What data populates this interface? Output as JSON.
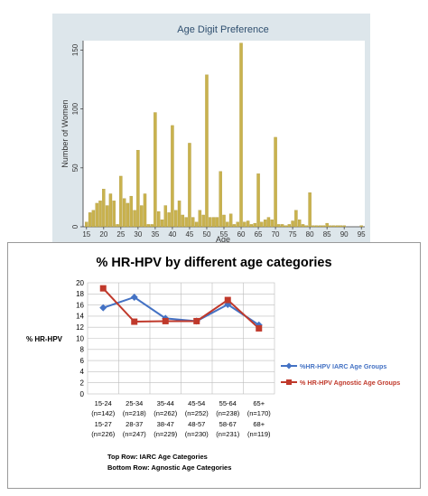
{
  "chart_data": [
    {
      "type": "bar",
      "title": "Age Digit Preference",
      "xlabel": "Age",
      "ylabel": "Number of Women",
      "xlim": [
        14,
        96
      ],
      "ylim": [
        0,
        158
      ],
      "xticks": [
        15,
        20,
        25,
        30,
        35,
        40,
        45,
        50,
        55,
        60,
        65,
        70,
        75,
        80,
        85,
        90,
        95
      ],
      "yticks": [
        0,
        50,
        100,
        150
      ],
      "ages": [
        15,
        16,
        17,
        18,
        19,
        20,
        21,
        22,
        23,
        24,
        25,
        26,
        27,
        28,
        29,
        30,
        31,
        32,
        33,
        34,
        35,
        36,
        37,
        38,
        39,
        40,
        41,
        42,
        43,
        44,
        45,
        46,
        47,
        48,
        49,
        50,
        51,
        52,
        53,
        54,
        55,
        56,
        57,
        58,
        59,
        60,
        61,
        62,
        63,
        64,
        65,
        66,
        67,
        68,
        69,
        70,
        71,
        72,
        73,
        74,
        75,
        76,
        77,
        78,
        79,
        80,
        81,
        82,
        83,
        84,
        85,
        86,
        87,
        88,
        89,
        90,
        91,
        92,
        93,
        94,
        95
      ],
      "values": [
        4,
        12,
        14,
        20,
        22,
        32,
        18,
        28,
        22,
        2,
        43,
        24,
        20,
        26,
        14,
        65,
        18,
        28,
        2,
        2,
        97,
        13,
        6,
        18,
        12,
        86,
        14,
        22,
        10,
        8,
        71,
        8,
        4,
        14,
        10,
        129,
        8,
        8,
        8,
        47,
        10,
        4,
        11,
        2,
        4,
        156,
        4,
        5,
        2,
        3,
        45,
        4,
        6,
        8,
        6,
        76,
        2,
        2,
        1,
        2,
        5,
        14,
        6,
        2,
        1,
        29,
        1,
        1,
        1,
        1,
        3,
        1,
        1,
        1,
        1,
        1,
        0,
        0,
        0,
        0,
        1
      ],
      "colors": {
        "bar": "#c9b24e",
        "bar_stroke": "#a8922f",
        "panel": "#dde6eb",
        "plot": "#ffffff"
      }
    },
    {
      "type": "line",
      "title": "% HR-HPV by different age categories",
      "ylabel": "% HR-HPV",
      "ylim": [
        0,
        20
      ],
      "yticks": [
        0,
        2,
        4,
        6,
        8,
        10,
        12,
        14,
        16,
        18,
        20
      ],
      "categories": [
        "15-24",
        "25-34",
        "35-44",
        "45-54",
        "55-64",
        "65+"
      ],
      "row1_counts": [
        "(n=142)",
        "(n=218)",
        "(n=262)",
        "(n=252)",
        "(n=238)",
        "(n=170)"
      ],
      "row2_labels": [
        "15-27",
        "28-37",
        "38-47",
        "48-57",
        "58-67",
        "68+"
      ],
      "row2_counts": [
        "(n=226)",
        "(n=247)",
        "(n=229)",
        "(n=230)",
        "(n=231)",
        "(n=119)"
      ],
      "series": [
        {
          "name": "%HR-HPV IARC Age Groups",
          "values": [
            15.5,
            17.4,
            13.6,
            13.1,
            16.1,
            12.4
          ],
          "color": "#4472c4",
          "marker": "diamond"
        },
        {
          "name": "% HR-HPV Agnostic Age Groups",
          "values": [
            19.0,
            13.0,
            13.1,
            13.1,
            16.9,
            11.8
          ],
          "color": "#c0392b",
          "marker": "square"
        }
      ],
      "footnote": [
        "Top Row: IARC Age Categories",
        "Bottom Row: Agnostic Age Categories"
      ]
    }
  ]
}
